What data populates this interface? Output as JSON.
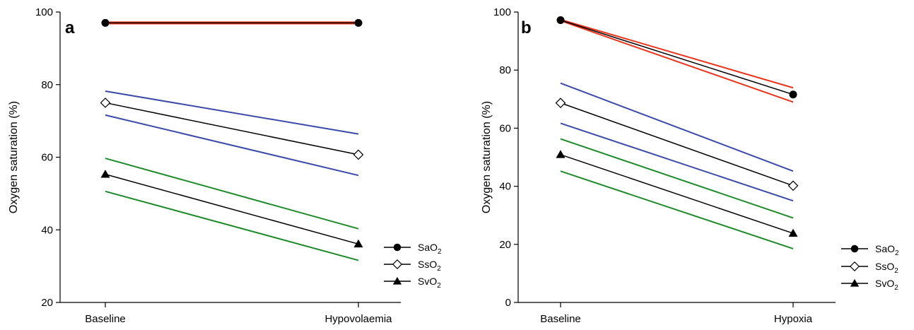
{
  "chart_data": [
    {
      "type": "line",
      "panel_label": "a",
      "categories": [
        "Baseline",
        "Hypovolaemia"
      ],
      "ylabel": "Oxygen saturation (%)",
      "xlabel": "",
      "ylim": [
        20,
        100
      ],
      "yticks": [
        "20",
        "40",
        "60",
        "80",
        "100"
      ],
      "grid": false,
      "legend_position": "bottom-right",
      "series": [
        {
          "name": "SaO2",
          "marker": "circle-filled",
          "color": "#000000",
          "values": [
            97,
            97
          ]
        },
        {
          "name": "SsO2",
          "marker": "diamond-open",
          "color": "#000000",
          "values": [
            75,
            60.7
          ]
        },
        {
          "name": "SvO2",
          "marker": "triangle-filled",
          "color": "#000000",
          "values": [
            55.3,
            36.1
          ]
        }
      ],
      "bands": [
        {
          "of": "SaO2",
          "color": "#e8351e",
          "upper": [
            97.2,
            97.2
          ],
          "lower": [
            96.8,
            96.8
          ]
        },
        {
          "of": "SsO2",
          "color": "#3b4aa8",
          "upper": [
            78.2,
            66.4
          ],
          "lower": [
            71.6,
            55
          ]
        },
        {
          "of": "SvO2",
          "color": "#1f8a2a",
          "upper": [
            59.7,
            40.3
          ],
          "lower": [
            50.6,
            31.6
          ]
        }
      ]
    },
    {
      "type": "line",
      "panel_label": "b",
      "categories": [
        "Baseline",
        "Hypoxia"
      ],
      "ylabel": "Oxygen saturation (%)",
      "xlabel": "",
      "ylim": [
        0,
        100
      ],
      "yticks": [
        "0",
        "20",
        "40",
        "60",
        "80",
        "100"
      ],
      "grid": false,
      "legend_position": "bottom-right",
      "series": [
        {
          "name": "SaO2",
          "marker": "circle-filled",
          "color": "#000000",
          "values": [
            97.2,
            71.6
          ]
        },
        {
          "name": "SsO2",
          "marker": "diamond-open",
          "color": "#000000",
          "values": [
            68.7,
            40.2
          ]
        },
        {
          "name": "SvO2",
          "marker": "triangle-filled",
          "color": "#000000",
          "values": [
            50.9,
            23.8
          ]
        }
      ],
      "bands": [
        {
          "of": "SaO2",
          "color": "#e8351e",
          "upper": [
            97.4,
            73.9
          ],
          "lower": [
            97.0,
            69.0
          ]
        },
        {
          "of": "SsO2",
          "color": "#3b4aa8",
          "upper": [
            75.5,
            45.2
          ],
          "lower": [
            61.7,
            35
          ]
        },
        {
          "of": "SvO2",
          "color": "#1f8a2a",
          "upper": [
            56.3,
            29.1
          ],
          "lower": [
            45.2,
            18.5
          ]
        }
      ]
    }
  ],
  "legend": {
    "entries": [
      {
        "base": "SaO",
        "sub": "2",
        "marker": "circle-filled"
      },
      {
        "base": "SsO",
        "sub": "2",
        "marker": "diamond-open"
      },
      {
        "base": "SvO",
        "sub": "2",
        "marker": "triangle-filled"
      }
    ]
  }
}
